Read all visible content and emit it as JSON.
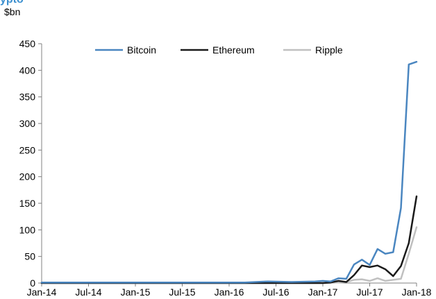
{
  "chart_data": {
    "type": "line",
    "title": "ypto",
    "ylabel": "$bn",
    "xlabel": "",
    "ylim": [
      0,
      450
    ],
    "yticks": [
      0,
      50,
      100,
      150,
      200,
      250,
      300,
      350,
      400,
      450
    ],
    "xticks": [
      "Jan-14",
      "Jul-14",
      "Jan-15",
      "Jul-15",
      "Jan-16",
      "Jul-16",
      "Jan-17",
      "Jul-17",
      "Jan-18"
    ],
    "x_range": [
      "2014-01",
      "2018-01"
    ],
    "legend_position": "top",
    "grid": false,
    "series": [
      {
        "name": "Bitcoin",
        "color": "#4a86c0",
        "points": [
          [
            "2014-01",
            1
          ],
          [
            "2014-07",
            1
          ],
          [
            "2015-01",
            1
          ],
          [
            "2015-07",
            1
          ],
          [
            "2016-01",
            1
          ],
          [
            "2016-03",
            1
          ],
          [
            "2016-06",
            3
          ],
          [
            "2016-09",
            2
          ],
          [
            "2016-12",
            3
          ],
          [
            "2017-01",
            4
          ],
          [
            "2017-02",
            3
          ],
          [
            "2017-03",
            9
          ],
          [
            "2017-04",
            8
          ],
          [
            "2017-05",
            35
          ],
          [
            "2017-06",
            44
          ],
          [
            "2017-07",
            34
          ],
          [
            "2017-08",
            64
          ],
          [
            "2017-09",
            55
          ],
          [
            "2017-10",
            58
          ],
          [
            "2017-11",
            141
          ],
          [
            "2017-12",
            411
          ],
          [
            "2018-01",
            416
          ]
        ]
      },
      {
        "name": "Ethereum",
        "color": "#1a1a1a",
        "points": [
          [
            "2014-01",
            0
          ],
          [
            "2016-06",
            0
          ],
          [
            "2017-01",
            0
          ],
          [
            "2017-02",
            1
          ],
          [
            "2017-03",
            4
          ],
          [
            "2017-04",
            2
          ],
          [
            "2017-05",
            15
          ],
          [
            "2017-06",
            33
          ],
          [
            "2017-07",
            30
          ],
          [
            "2017-08",
            33
          ],
          [
            "2017-09",
            26
          ],
          [
            "2017-10",
            13
          ],
          [
            "2017-11",
            32
          ],
          [
            "2017-12",
            75
          ],
          [
            "2018-01",
            163
          ]
        ]
      },
      {
        "name": "Ripple",
        "color": "#c0c0c0",
        "points": [
          [
            "2014-01",
            0
          ],
          [
            "2016-06",
            0
          ],
          [
            "2017-01",
            0
          ],
          [
            "2017-03",
            1
          ],
          [
            "2017-04",
            2
          ],
          [
            "2017-05",
            6
          ],
          [
            "2017-06",
            7
          ],
          [
            "2017-07",
            4
          ],
          [
            "2017-08",
            9
          ],
          [
            "2017-09",
            4
          ],
          [
            "2017-10",
            6
          ],
          [
            "2017-11",
            8
          ],
          [
            "2017-12",
            55
          ],
          [
            "2018-01",
            105
          ]
        ]
      }
    ]
  }
}
